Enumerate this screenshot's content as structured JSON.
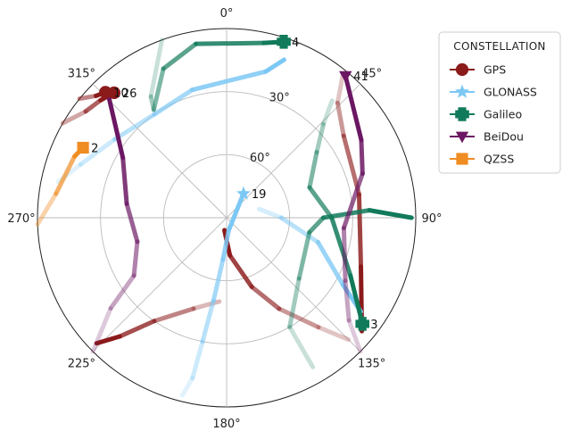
{
  "chart_data": {
    "type": "polar-skyplot",
    "azimuth_labels": [
      {
        "azimuth": 0,
        "text": "0°"
      },
      {
        "azimuth": 45,
        "text": "45°"
      },
      {
        "azimuth": 90,
        "text": "90°"
      },
      {
        "azimuth": 135,
        "text": "135°"
      },
      {
        "azimuth": 180,
        "text": "180°"
      },
      {
        "azimuth": 225,
        "text": "225°"
      },
      {
        "azimuth": 270,
        "text": "270°"
      },
      {
        "azimuth": 315,
        "text": "315°"
      }
    ],
    "elevation_rings": [
      {
        "elevation": 30,
        "text": "30°"
      },
      {
        "elevation": 60,
        "text": "60°"
      }
    ],
    "elevation_range": [
      0,
      90
    ],
    "grid": true,
    "legend": {
      "title": "CONSTELLATION",
      "placement": "right",
      "entries": [
        {
          "name": "GPS",
          "color": "#8b1a1a",
          "marker": "circle"
        },
        {
          "name": "GLONASS",
          "color": "#7cc8f5",
          "marker": "star"
        },
        {
          "name": "Galileo",
          "color": "#117a5a",
          "marker": "plus"
        },
        {
          "name": "BeiDou",
          "color": "#6b1763",
          "marker": "triangle-down"
        },
        {
          "name": "QZSS",
          "color": "#ef8c22",
          "marker": "square"
        }
      ]
    },
    "tracks": [
      {
        "constellation": "GPS",
        "label": "26",
        "points": [
          [
            300,
            0
          ],
          [
            307,
            6
          ],
          [
            313,
            8
          ],
          [
            318,
            10
          ]
        ]
      },
      {
        "constellation": "GPS",
        "label": "10",
        "points": [
          [
            309,
            0
          ],
          [
            313,
            5
          ],
          [
            316,
            7
          ]
        ]
      },
      {
        "constellation": "GPS",
        "label": "",
        "points": [
          [
            39,
            2
          ],
          [
            44,
            14
          ],
          [
            55,
            22
          ],
          [
            80,
            26
          ],
          [
            110,
            22
          ],
          [
            130,
            6
          ]
        ]
      },
      {
        "constellation": "GPS",
        "label": "",
        "points": [
          [
            185,
            50
          ],
          [
            200,
            44
          ],
          [
            215,
            30
          ],
          [
            222,
            14
          ],
          [
            226,
            4
          ]
        ]
      },
      {
        "constellation": "GPS",
        "label": "",
        "points": [
          [
            135,
            8
          ],
          [
            140,
            22
          ],
          [
            150,
            40
          ],
          [
            160,
            55
          ],
          [
            175,
            72
          ],
          [
            190,
            84
          ]
        ]
      },
      {
        "constellation": "GLONASS",
        "label": "19",
        "points": [
          [
            194,
            3
          ],
          [
            192,
            12
          ],
          [
            191,
            30
          ],
          [
            189,
            50
          ],
          [
            185,
            70
          ],
          [
            170,
            84
          ],
          [
            35,
            76
          ]
        ]
      },
      {
        "constellation": "GLONASS",
        "label": "",
        "points": [
          [
            282,
            8
          ],
          [
            290,
            16
          ],
          [
            305,
            25
          ],
          [
            325,
            30
          ],
          [
            345,
            27
          ],
          [
            15,
            18
          ],
          [
            20,
            10
          ]
        ]
      },
      {
        "constellation": "GLONASS",
        "label": "",
        "points": [
          [
            75,
            74
          ],
          [
            90,
            64
          ],
          [
            105,
            45
          ],
          [
            120,
            26
          ],
          [
            125,
            12
          ]
        ]
      },
      {
        "constellation": "Galileo",
        "label": "4",
        "points": [
          [
            340,
            0
          ],
          [
            328,
            22
          ],
          [
            326,
            28
          ],
          [
            337,
            13
          ],
          [
            350,
            6
          ],
          [
            12,
            5
          ],
          [
            18,
            2
          ]
        ]
      },
      {
        "constellation": "Galileo",
        "label": "3",
        "points": [
          [
            42,
            15
          ],
          [
            46,
            26
          ],
          [
            54,
            37
          ],
          [
            70,
            48
          ],
          [
            90,
            40
          ],
          [
            115,
            25
          ],
          [
            128,
            8
          ]
        ]
      },
      {
        "constellation": "Galileo",
        "label": "",
        "points": [
          [
            150,
            8
          ],
          [
            150,
            30
          ],
          [
            130,
            45
          ],
          [
            100,
            50
          ],
          [
            90,
            44
          ],
          [
            87,
            22
          ],
          [
            90,
            2
          ]
        ]
      },
      {
        "constellation": "BeiDou",
        "label": "41",
        "points": [
          [
            135,
            0
          ],
          [
            130,
            14
          ],
          [
            118,
            26
          ],
          [
            95,
            34
          ],
          [
            72,
            22
          ],
          [
            60,
            16
          ],
          [
            40,
            2
          ]
        ]
      },
      {
        "constellation": "BeiDou",
        "label": "",
        "points": [
          [
            225,
            0
          ],
          [
            232,
            20
          ],
          [
            238,
            38
          ],
          [
            255,
            46
          ],
          [
            278,
            42
          ],
          [
            300,
            33
          ],
          [
            316,
            9
          ]
        ]
      },
      {
        "constellation": "QZSS",
        "label": "2",
        "points": [
          [
            268,
            0
          ],
          [
            278,
            8
          ],
          [
            292,
            12
          ],
          [
            296,
            14
          ]
        ]
      }
    ]
  }
}
